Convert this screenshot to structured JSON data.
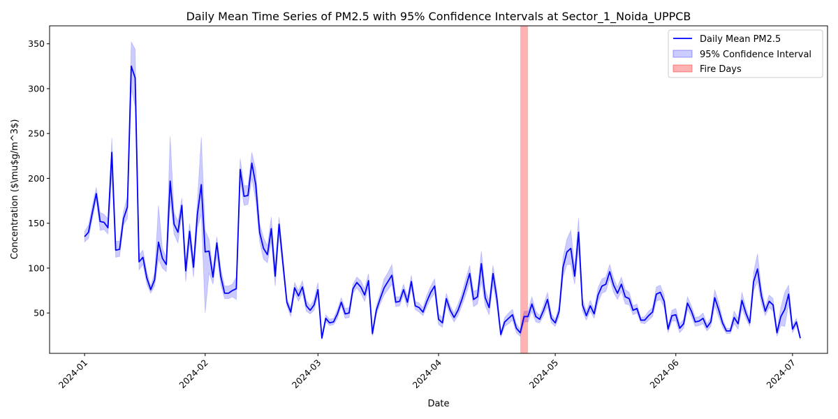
{
  "chart_data": {
    "type": "line",
    "title": "Daily Mean Time Series of PM2.5 with 95% Confidence Intervals at Sector_1_Noida_UPPCB",
    "xlabel": "Date",
    "ylabel": "Concentration ($\\mu$g/m^3$)",
    "xlim": [
      "2023-12-23",
      "2024-07-10"
    ],
    "ylim": [
      5,
      370
    ],
    "x_ticks": [
      "2024-01",
      "2024-02",
      "2024-03",
      "2024-04",
      "2024-05",
      "2024-06",
      "2024-07"
    ],
    "y_ticks": [
      50,
      100,
      150,
      200,
      250,
      300,
      350
    ],
    "grid": false,
    "legend_position": "top-right",
    "legend": [
      "Daily Mean PM2.5",
      "95% Confidence Interval",
      "Fire Days"
    ],
    "colors": {
      "line": "#0000ff",
      "band": "#0000ff",
      "fire": "#ff0000"
    },
    "fire_days": {
      "start": "2024-04-22",
      "end": "2024-04-24"
    },
    "series": [
      {
        "name": "Daily Mean PM2.5",
        "start_date": "2024-01-01",
        "values": [
          135,
          140,
          162,
          183,
          152,
          151,
          145,
          229,
          120,
          121,
          155,
          168,
          325,
          312,
          107,
          112,
          89,
          76,
          87,
          129,
          111,
          104,
          197,
          149,
          140,
          170,
          97,
          141,
          101,
          160,
          193,
          118,
          119,
          90,
          128,
          91,
          72,
          72,
          75,
          77,
          210,
          180,
          181,
          217,
          193,
          140,
          122,
          115,
          144,
          91,
          149,
          105,
          62,
          51,
          78,
          69,
          79,
          58,
          53,
          59,
          76,
          22,
          44,
          39,
          40,
          49,
          62,
          49,
          50,
          77,
          84,
          79,
          70,
          86,
          27,
          53,
          66,
          78,
          85,
          92,
          62,
          63,
          76,
          62,
          85,
          58,
          56,
          51,
          63,
          73,
          80,
          43,
          39,
          66,
          53,
          45,
          53,
          65,
          79,
          94,
          65,
          68,
          105,
          67,
          56,
          94,
          66,
          26,
          40,
          44,
          48,
          33,
          28,
          46,
          46,
          60,
          46,
          43,
          53,
          65,
          44,
          39,
          52,
          101,
          118,
          122,
          91,
          140,
          59,
          47,
          58,
          49,
          70,
          80,
          82,
          96,
          81,
          72,
          82,
          68,
          66,
          53,
          55,
          42,
          42,
          47,
          51,
          71,
          73,
          63,
          32,
          47,
          48,
          33,
          38,
          61,
          52,
          40,
          41,
          44,
          34,
          40,
          67,
          54,
          39,
          30,
          30,
          45,
          38,
          64,
          50,
          39,
          85,
          99,
          69,
          52,
          63,
          59,
          28,
          46,
          54,
          71,
          32,
          40,
          22
        ],
        "ci_lower": [
          129,
          133,
          155,
          176,
          142,
          143,
          138,
          205,
          112,
          113,
          148,
          155,
          300,
          280,
          98,
          104,
          82,
          72,
          80,
          110,
          100,
          96,
          175,
          138,
          128,
          160,
          85,
          128,
          90,
          145,
          160,
          50,
          95,
          82,
          115,
          82,
          66,
          66,
          68,
          65,
          196,
          170,
          171,
          200,
          175,
          130,
          110,
          106,
          130,
          80,
          138,
          97,
          58,
          46,
          72,
          63,
          72,
          52,
          49,
          53,
          70,
          20,
          40,
          36,
          37,
          44,
          58,
          44,
          45,
          72,
          78,
          72,
          63,
          78,
          24,
          48,
          60,
          70,
          76,
          82,
          57,
          58,
          70,
          56,
          78,
          54,
          51,
          47,
          57,
          66,
          72,
          37,
          34,
          59,
          48,
          40,
          47,
          58,
          70,
          84,
          57,
          60,
          85,
          58,
          48,
          82,
          57,
          23,
          35,
          38,
          42,
          28,
          24,
          40,
          40,
          52,
          40,
          39,
          47,
          57,
          39,
          35,
          46,
          90,
          104,
          104,
          82,
          122,
          52,
          42,
          52,
          44,
          62,
          72,
          74,
          88,
          73,
          65,
          74,
          60,
          59,
          48,
          50,
          39,
          38,
          42,
          46,
          63,
          65,
          56,
          28,
          41,
          41,
          28,
          33,
          54,
          46,
          35,
          36,
          38,
          30,
          35,
          58,
          46,
          34,
          27,
          27,
          38,
          32,
          55,
          44,
          35,
          75,
          85,
          60,
          47,
          56,
          52,
          24,
          36,
          35,
          60,
          28,
          36,
          20
        ],
        "ci_upper": [
          141,
          148,
          170,
          190,
          162,
          160,
          155,
          245,
          130,
          130,
          163,
          180,
          352,
          344,
          115,
          120,
          96,
          80,
          95,
          170,
          122,
          112,
          247,
          162,
          152,
          178,
          108,
          150,
          110,
          175,
          246,
          142,
          132,
          98,
          135,
          100,
          80,
          80,
          82,
          90,
          222,
          192,
          192,
          229,
          210,
          150,
          134,
          125,
          157,
          102,
          157,
          113,
          66,
          56,
          84,
          75,
          86,
          64,
          58,
          65,
          84,
          25,
          48,
          43,
          44,
          54,
          67,
          55,
          56,
          82,
          90,
          86,
          77,
          94,
          30,
          58,
          72,
          88,
          95,
          104,
          68,
          68,
          82,
          68,
          92,
          63,
          61,
          56,
          70,
          80,
          88,
          49,
          45,
          72,
          58,
          50,
          60,
          72,
          88,
          103,
          74,
          76,
          119,
          76,
          64,
          103,
          75,
          29,
          45,
          50,
          54,
          38,
          32,
          52,
          52,
          68,
          52,
          47,
          59,
          73,
          49,
          43,
          58,
          112,
          132,
          142,
          101,
          156,
          66,
          52,
          64,
          54,
          78,
          88,
          90,
          104,
          89,
          79,
          90,
          76,
          73,
          58,
          60,
          45,
          46,
          52,
          56,
          79,
          81,
          70,
          36,
          53,
          55,
          38,
          43,
          68,
          58,
          45,
          46,
          50,
          38,
          45,
          76,
          62,
          44,
          33,
          33,
          52,
          44,
          73,
          56,
          43,
          95,
          116,
          78,
          57,
          70,
          66,
          32,
          56,
          73,
          81,
          36,
          44,
          24
        ]
      }
    ]
  }
}
